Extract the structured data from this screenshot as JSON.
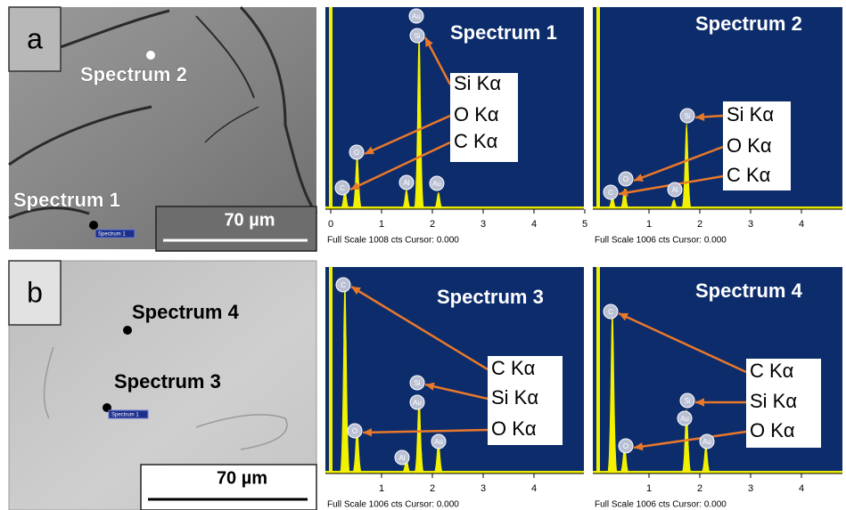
{
  "figure": {
    "panels": [
      {
        "label": "a",
        "image_labels": [
          "Spectrum 2",
          "Spectrum 1"
        ],
        "marker_label": "Spectrum 1",
        "scale_bar": "70 µm",
        "spectra": [
          {
            "title": "Spectrum 1",
            "peak_labels": [
              "Au",
              "Si",
              "O",
              "C",
              "Al",
              "Au"
            ],
            "lines": [
              "Si Kα",
              "O Kα",
              "C Kα"
            ],
            "xticks": [
              "0",
              "1",
              "2",
              "3",
              "4",
              "5"
            ],
            "footer": "Full Scale 1008 cts Cursor: 0.000"
          },
          {
            "title": "Spectrum 2",
            "peak_labels": [
              "Si",
              "O",
              "C",
              "Al"
            ],
            "lines": [
              "Si Kα",
              "O Kα",
              "C Kα"
            ],
            "xticks": [
              "1",
              "2",
              "3",
              "4"
            ],
            "footer": "Full Scale 1006 cts Cursor: 0.000"
          }
        ]
      },
      {
        "label": "b",
        "image_labels": [
          "Spectrum 4",
          "Spectrum 3"
        ],
        "marker_label": "Spectrum 1",
        "scale_bar": "70 µm",
        "spectra": [
          {
            "title": "Spectrum 3",
            "peak_labels": [
              "C",
              "Si",
              "Au",
              "O",
              "Al",
              "Au"
            ],
            "lines": [
              "C Kα",
              "Si Kα",
              "O Kα"
            ],
            "xticks": [
              "1",
              "2",
              "3",
              "4"
            ],
            "footer": "Full Scale 1006 cts Cursor: 0.000"
          },
          {
            "title": "Spectrum 4",
            "peak_labels": [
              "C",
              "Si",
              "Au",
              "O",
              "Au"
            ],
            "lines": [
              "C Kα",
              "Si Kα",
              "O Kα"
            ],
            "xticks": [
              "1",
              "2",
              "3",
              "4"
            ],
            "footer": "Full Scale 1006 cts Cursor: 0.000"
          }
        ]
      }
    ]
  }
}
